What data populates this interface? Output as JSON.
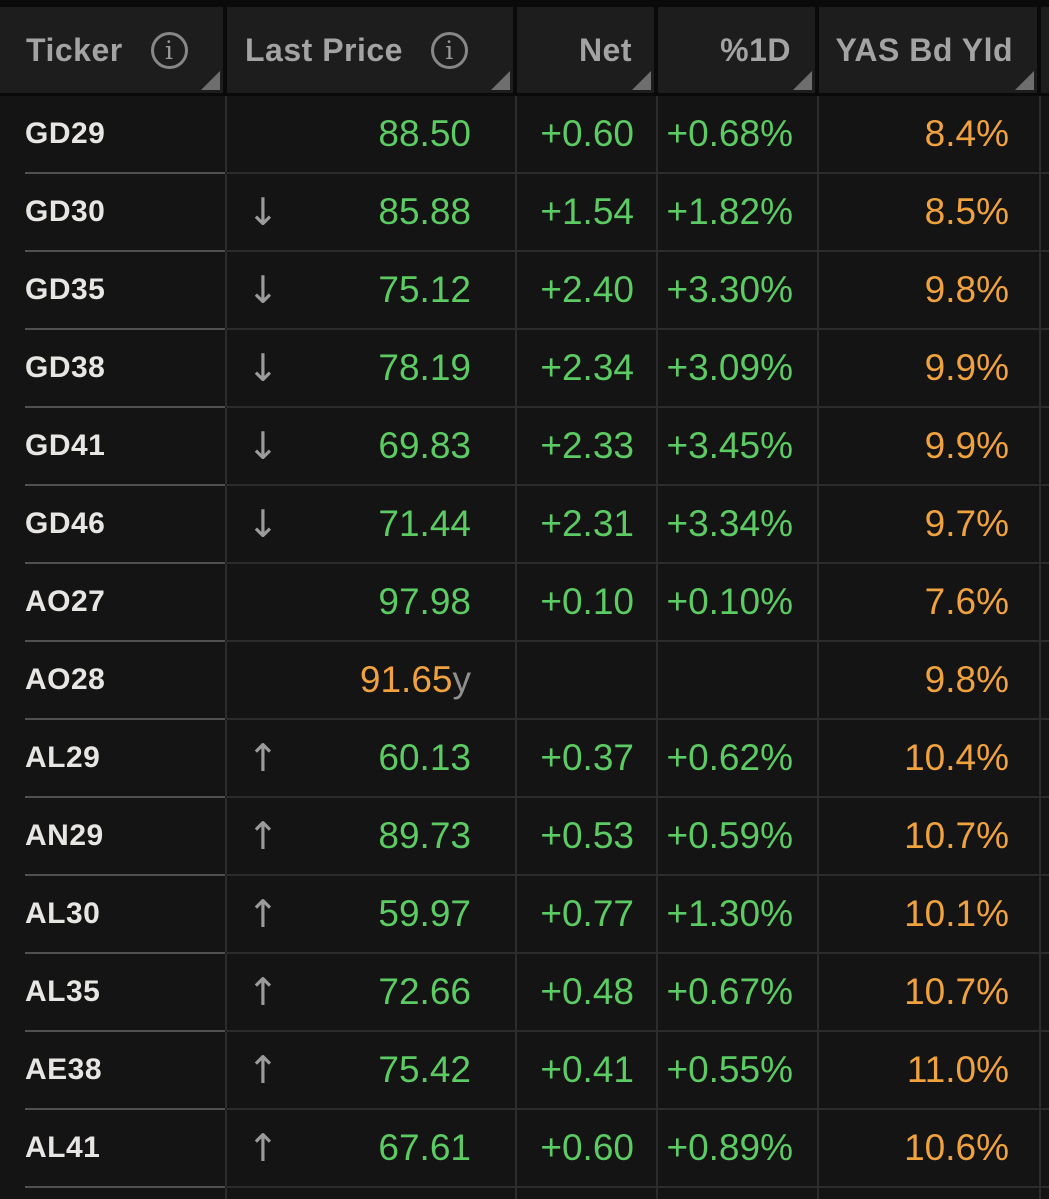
{
  "table": {
    "columns": [
      {
        "key": "ticker",
        "label": "Ticker",
        "align": "left",
        "has_info_icon": true,
        "sortable": true
      },
      {
        "key": "last_price",
        "label": "Last Price",
        "align": "left",
        "has_info_icon": true,
        "sortable": true
      },
      {
        "key": "net",
        "label": "Net",
        "align": "right",
        "has_info_icon": false,
        "sortable": true
      },
      {
        "key": "pct_1d",
        "label": "%1D",
        "align": "right",
        "has_info_icon": false,
        "sortable": true
      },
      {
        "key": "yas_bd_yld",
        "label": "YAS Bd Yld",
        "align": "right",
        "has_info_icon": false,
        "sortable": true
      }
    ],
    "rows": [
      {
        "ticker": "GD29",
        "direction": "",
        "last_price": "88.50",
        "price_suffix": "",
        "price_color": "positive",
        "net": "+0.60",
        "pct_1d": "+0.68%",
        "yas_bd_yld": "8.4%"
      },
      {
        "ticker": "GD30",
        "direction": "down",
        "last_price": "85.88",
        "price_suffix": "",
        "price_color": "positive",
        "net": "+1.54",
        "pct_1d": "+1.82%",
        "yas_bd_yld": "8.5%"
      },
      {
        "ticker": "GD35",
        "direction": "down",
        "last_price": "75.12",
        "price_suffix": "",
        "price_color": "positive",
        "net": "+2.40",
        "pct_1d": "+3.30%",
        "yas_bd_yld": "9.8%"
      },
      {
        "ticker": "GD38",
        "direction": "down",
        "last_price": "78.19",
        "price_suffix": "",
        "price_color": "positive",
        "net": "+2.34",
        "pct_1d": "+3.09%",
        "yas_bd_yld": "9.9%"
      },
      {
        "ticker": "GD41",
        "direction": "down",
        "last_price": "69.83",
        "price_suffix": "",
        "price_color": "positive",
        "net": "+2.33",
        "pct_1d": "+3.45%",
        "yas_bd_yld": "9.9%"
      },
      {
        "ticker": "GD46",
        "direction": "down",
        "last_price": "71.44",
        "price_suffix": "",
        "price_color": "positive",
        "net": "+2.31",
        "pct_1d": "+3.34%",
        "yas_bd_yld": "9.7%"
      },
      {
        "ticker": "AO27",
        "direction": "",
        "last_price": "97.98",
        "price_suffix": "",
        "price_color": "positive",
        "net": "+0.10",
        "pct_1d": "+0.10%",
        "yas_bd_yld": "7.6%"
      },
      {
        "ticker": "AO28",
        "direction": "",
        "last_price": "91.65",
        "price_suffix": "y",
        "price_color": "amber",
        "net": "",
        "pct_1d": "",
        "yas_bd_yld": "9.8%"
      },
      {
        "ticker": "AL29",
        "direction": "up",
        "last_price": "60.13",
        "price_suffix": "",
        "price_color": "positive",
        "net": "+0.37",
        "pct_1d": "+0.62%",
        "yas_bd_yld": "10.4%"
      },
      {
        "ticker": "AN29",
        "direction": "up",
        "last_price": "89.73",
        "price_suffix": "",
        "price_color": "positive",
        "net": "+0.53",
        "pct_1d": "+0.59%",
        "yas_bd_yld": "10.7%"
      },
      {
        "ticker": "AL30",
        "direction": "up",
        "last_price": "59.97",
        "price_suffix": "",
        "price_color": "positive",
        "net": "+0.77",
        "pct_1d": "+1.30%",
        "yas_bd_yld": "10.1%"
      },
      {
        "ticker": "AL35",
        "direction": "up",
        "last_price": "72.66",
        "price_suffix": "",
        "price_color": "positive",
        "net": "+0.48",
        "pct_1d": "+0.67%",
        "yas_bd_yld": "10.7%"
      },
      {
        "ticker": "AE38",
        "direction": "up",
        "last_price": "75.42",
        "price_suffix": "",
        "price_color": "positive",
        "net": "+0.41",
        "pct_1d": "+0.55%",
        "yas_bd_yld": "11.0%"
      },
      {
        "ticker": "AL41",
        "direction": "up",
        "last_price": "67.61",
        "price_suffix": "",
        "price_color": "positive",
        "net": "+0.60",
        "pct_1d": "+0.89%",
        "yas_bd_yld": "10.6%"
      }
    ]
  },
  "icons": {
    "info": "i",
    "up_arrow": "↑",
    "down_arrow": "↓",
    "sort_corner": "bottom-right-triangle"
  },
  "colors": {
    "page_bg": "#0a0a0a",
    "header_bg": "#1d1d1d",
    "cell_bg": "#141414",
    "header_text": "#a3a3a3",
    "ticker_text": "#e8e6e3",
    "positive": "#5ccb63",
    "amber": "#f0a23f",
    "muted": "#8f8f8f",
    "arrow": "#9b9b9b",
    "divider": "#2c2c2c",
    "ticker_divider": "#515151",
    "sort_corner": "#6e6e6e",
    "info_icon": "#878787"
  }
}
